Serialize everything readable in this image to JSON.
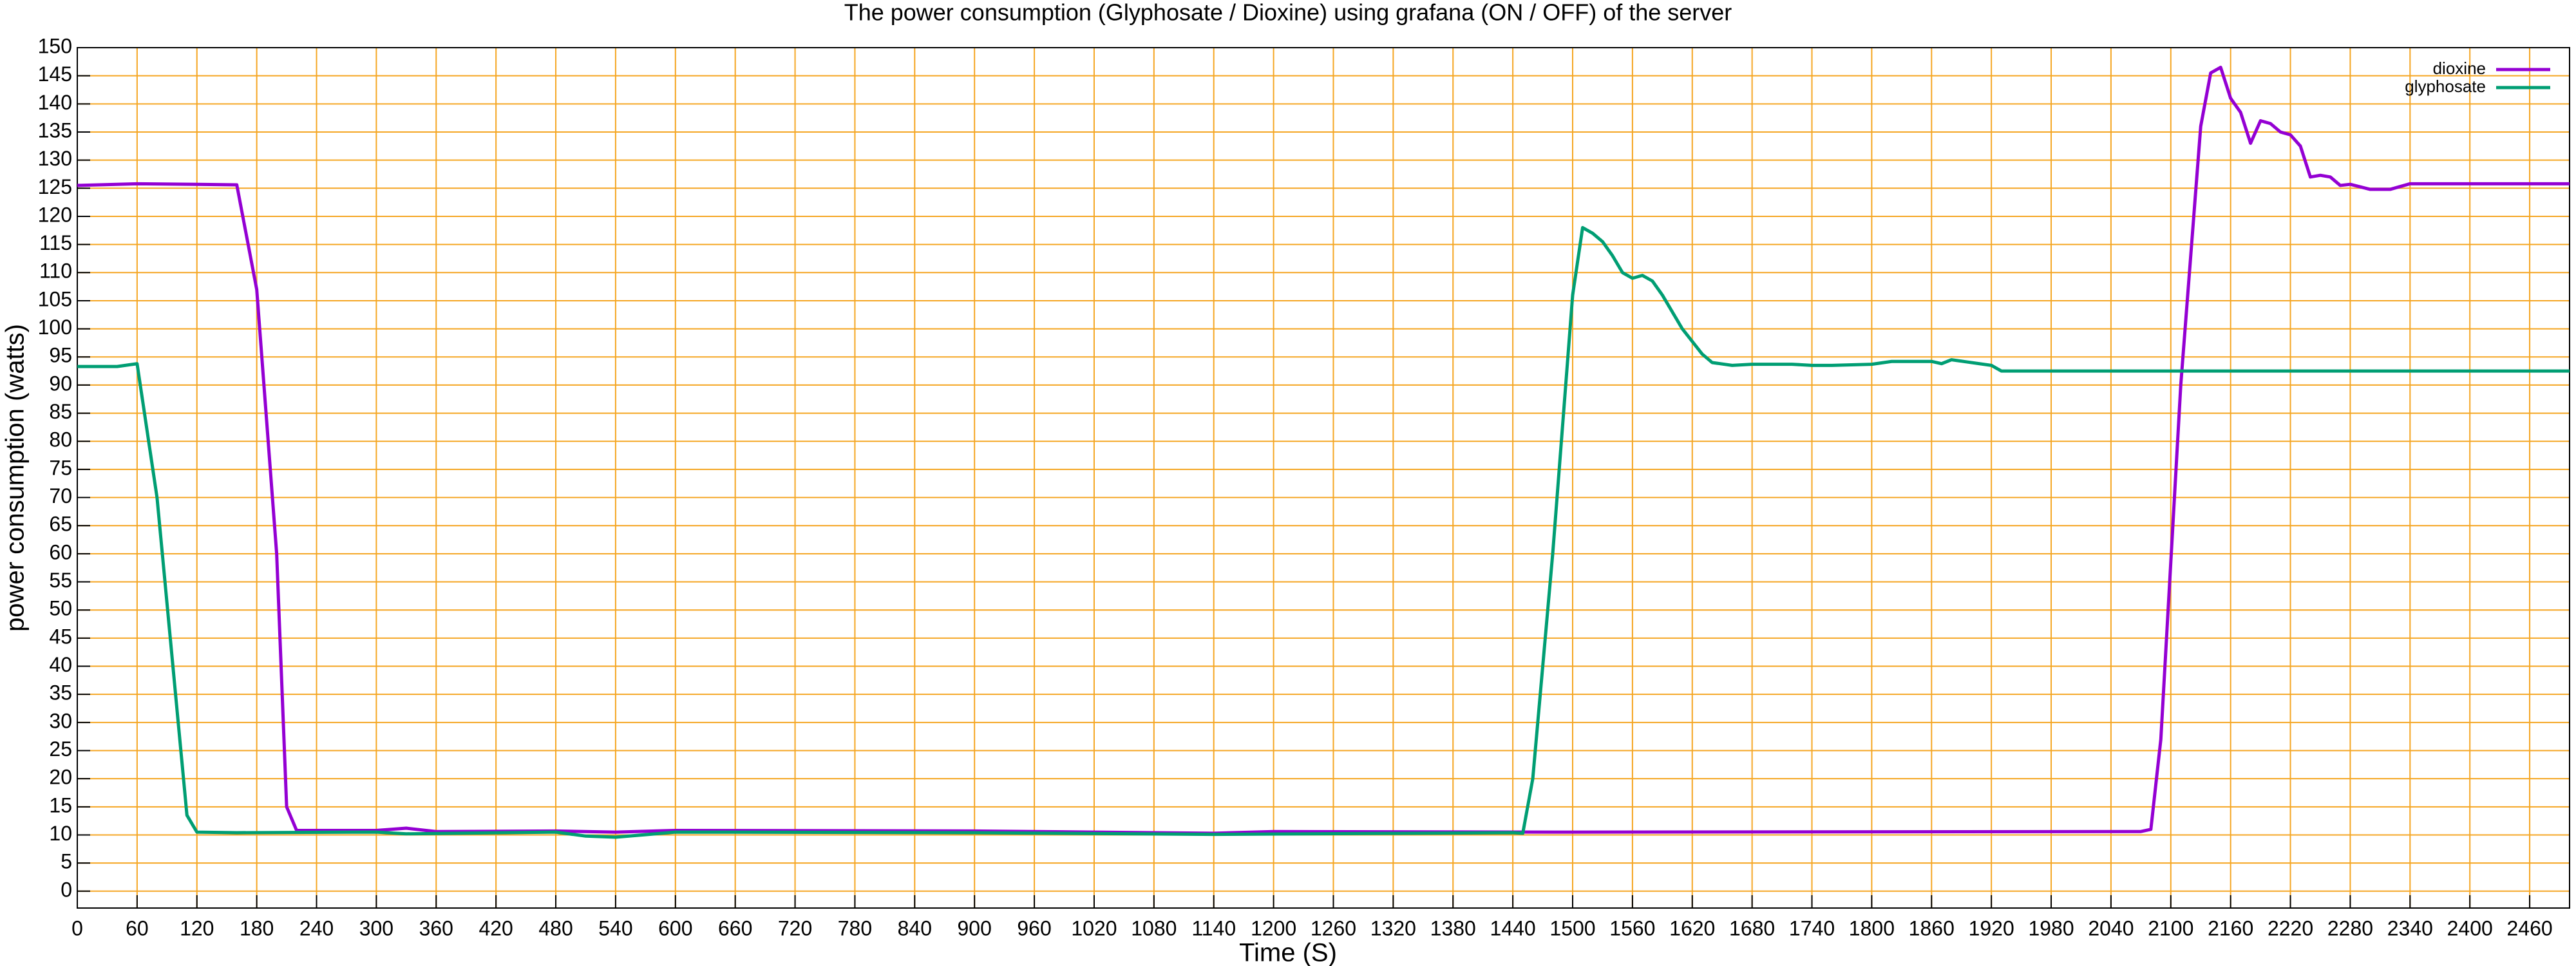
{
  "chart_data": {
    "type": "line",
    "title": "The power consumption (Glyphosate / Dioxine) using grafana (ON / OFF) of the server",
    "x_label": "Time (S)",
    "y_label": "power consumption (watts)",
    "xlim": [
      0,
      2500
    ],
    "ylim": [
      -3,
      150
    ],
    "xticks": [
      0,
      60,
      120,
      180,
      240,
      300,
      360,
      420,
      480,
      540,
      600,
      660,
      720,
      780,
      840,
      900,
      960,
      1020,
      1080,
      1140,
      1200,
      1260,
      1320,
      1380,
      1440,
      1500,
      1560,
      1620,
      1680,
      1740,
      1800,
      1860,
      1920,
      1980,
      2040,
      2100,
      2160,
      2220,
      2280,
      2340,
      2400,
      2460
    ],
    "yticks": [
      0,
      5,
      10,
      15,
      20,
      25,
      30,
      35,
      40,
      45,
      50,
      55,
      60,
      65,
      70,
      75,
      80,
      85,
      90,
      95,
      100,
      105,
      110,
      115,
      120,
      125,
      130,
      135,
      140,
      145,
      150
    ],
    "grid": true,
    "grid_color": "#f5a623",
    "legend": "top right",
    "series": [
      {
        "name": "dioxine",
        "color": "#9400d3",
        "x": [
          0,
          60,
          120,
          160,
          180,
          200,
          210,
          220,
          300,
          330,
          360,
          480,
          540,
          600,
          900,
          1140,
          1200,
          1500,
          2070,
          2080,
          2090,
          2110,
          2130,
          2140,
          2150,
          2160,
          2170,
          2180,
          2190,
          2200,
          2210,
          2220,
          2230,
          2240,
          2250,
          2260,
          2270,
          2280,
          2300,
          2320,
          2340,
          2400,
          2500
        ],
        "values": [
          125.5,
          125.8,
          125.7,
          125.6,
          107,
          60,
          15,
          10.8,
          10.8,
          11.2,
          10.6,
          10.7,
          10.5,
          10.8,
          10.7,
          10.3,
          10.6,
          10.5,
          10.6,
          11,
          27,
          90,
          136,
          145.5,
          146.5,
          141,
          138.5,
          133,
          137,
          136.5,
          135,
          134.5,
          132.5,
          127,
          127.3,
          127,
          125.5,
          125.7,
          124.8,
          124.8,
          125.8,
          125.8,
          125.8
        ]
      },
      {
        "name": "glyphosate",
        "color": "#009e73",
        "x": [
          0,
          40,
          60,
          80,
          110,
          120,
          160,
          300,
          330,
          480,
          510,
          540,
          600,
          900,
          1140,
          1440,
          1450,
          1460,
          1480,
          1500,
          1510,
          1520,
          1530,
          1540,
          1550,
          1560,
          1570,
          1580,
          1590,
          1610,
          1630,
          1640,
          1660,
          1680,
          1720,
          1740,
          1760,
          1800,
          1820,
          1860,
          1870,
          1880,
          1920,
          1930,
          2500
        ],
        "values": [
          93.3,
          93.3,
          93.8,
          70,
          13.5,
          10.5,
          10.4,
          10.5,
          10.2,
          10.5,
          9.8,
          9.6,
          10.5,
          10.4,
          10.1,
          10.4,
          10.3,
          20,
          60,
          106,
          118,
          117,
          115.5,
          113,
          110,
          109,
          109.5,
          108.5,
          106,
          100,
          95.5,
          94,
          93.5,
          93.7,
          93.7,
          93.5,
          93.5,
          93.7,
          94.2,
          94.2,
          93.8,
          94.5,
          93.5,
          92.5,
          92.5
        ]
      }
    ]
  }
}
